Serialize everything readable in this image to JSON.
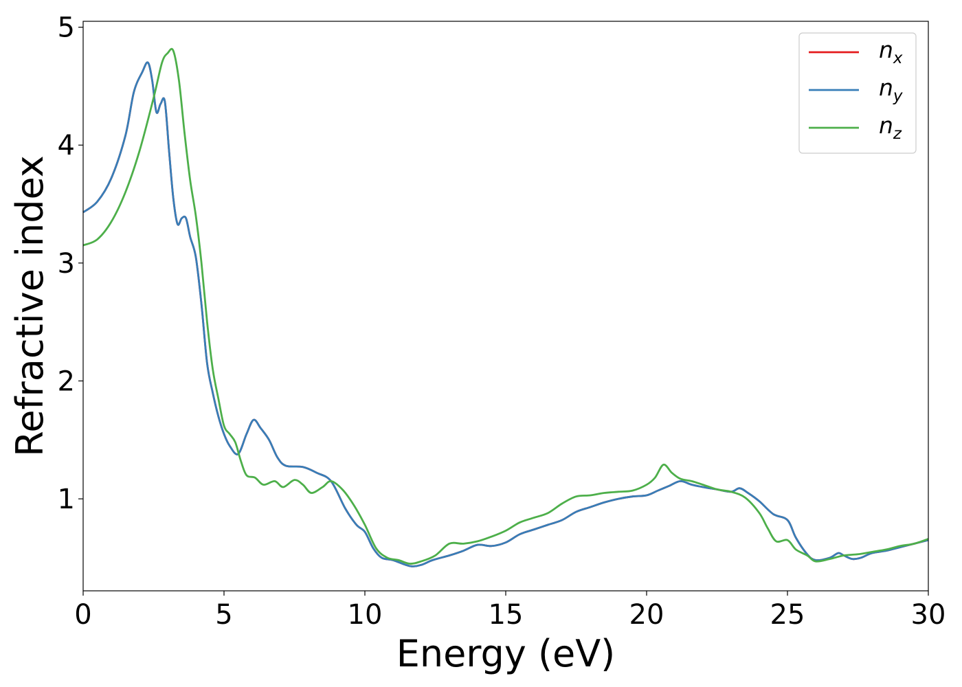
{
  "chart_data": {
    "type": "line",
    "xlabel": "Energy (eV)",
    "ylabel": "Refractive index",
    "xlim": [
      0,
      30
    ],
    "ylim": [
      0.22,
      5.05
    ],
    "xticks": [
      0,
      5,
      10,
      15,
      20,
      25,
      30
    ],
    "yticks": [
      1,
      2,
      3,
      4,
      5
    ],
    "xtick_labels": [
      "0",
      "5",
      "10",
      "15",
      "20",
      "25",
      "30"
    ],
    "ytick_labels": [
      "1",
      "2",
      "3",
      "4",
      "5"
    ],
    "grid": false,
    "legend_position": "top-right",
    "series": [
      {
        "name": "n_x",
        "label_base": "n",
        "label_sub": "x",
        "color": "#e41a1c",
        "x": [
          0,
          0.5,
          1.0,
          1.5,
          1.8,
          2.1,
          2.3,
          2.45,
          2.6,
          2.75,
          2.9,
          3.05,
          3.2,
          3.35,
          3.5,
          3.65,
          3.8,
          4.0,
          4.2,
          4.4,
          4.6,
          4.8,
          5.0,
          5.2,
          5.5,
          5.8,
          6.05,
          6.3,
          6.6,
          6.9,
          7.2,
          7.8,
          8.3,
          8.8,
          9.3,
          9.7,
          10.0,
          10.3,
          10.6,
          11.0,
          11.6,
          12.0,
          12.4,
          13.0,
          13.5,
          14.0,
          14.5,
          15.0,
          15.5,
          16.0,
          16.5,
          17.0,
          17.5,
          18.0,
          18.5,
          19.0,
          19.5,
          20.0,
          20.4,
          20.8,
          21.2,
          21.6,
          22.0,
          22.5,
          23.0,
          23.3,
          23.6,
          24.0,
          24.5,
          25.0,
          25.3,
          25.7,
          26.0,
          26.5,
          26.8,
          27.0,
          27.3,
          27.6,
          28.0,
          28.5,
          29.0,
          29.5,
          30.0
        ],
        "values": [
          3.43,
          3.52,
          3.72,
          4.08,
          4.45,
          4.62,
          4.7,
          4.55,
          4.28,
          4.35,
          4.37,
          3.95,
          3.55,
          3.33,
          3.38,
          3.38,
          3.22,
          3.05,
          2.65,
          2.15,
          1.9,
          1.7,
          1.55,
          1.45,
          1.38,
          1.55,
          1.67,
          1.6,
          1.5,
          1.35,
          1.28,
          1.27,
          1.22,
          1.15,
          0.92,
          0.78,
          0.72,
          0.58,
          0.5,
          0.48,
          0.43,
          0.44,
          0.48,
          0.52,
          0.56,
          0.61,
          0.6,
          0.63,
          0.7,
          0.74,
          0.78,
          0.82,
          0.89,
          0.93,
          0.97,
          1.0,
          1.02,
          1.03,
          1.07,
          1.11,
          1.15,
          1.12,
          1.1,
          1.08,
          1.06,
          1.09,
          1.05,
          0.98,
          0.87,
          0.82,
          0.67,
          0.53,
          0.48,
          0.5,
          0.54,
          0.52,
          0.49,
          0.5,
          0.54,
          0.56,
          0.59,
          0.62,
          0.65
        ]
      },
      {
        "name": "n_y",
        "label_base": "n",
        "label_sub": "y",
        "color": "#377eb8",
        "x": [
          0,
          0.5,
          1.0,
          1.5,
          1.8,
          2.1,
          2.3,
          2.45,
          2.6,
          2.75,
          2.9,
          3.05,
          3.2,
          3.35,
          3.5,
          3.65,
          3.8,
          4.0,
          4.2,
          4.4,
          4.6,
          4.8,
          5.0,
          5.2,
          5.5,
          5.8,
          6.05,
          6.3,
          6.6,
          6.9,
          7.2,
          7.8,
          8.3,
          8.8,
          9.3,
          9.7,
          10.0,
          10.3,
          10.6,
          11.0,
          11.6,
          12.0,
          12.4,
          13.0,
          13.5,
          14.0,
          14.5,
          15.0,
          15.5,
          16.0,
          16.5,
          17.0,
          17.5,
          18.0,
          18.5,
          19.0,
          19.5,
          20.0,
          20.4,
          20.8,
          21.2,
          21.6,
          22.0,
          22.5,
          23.0,
          23.3,
          23.6,
          24.0,
          24.5,
          25.0,
          25.3,
          25.7,
          26.0,
          26.5,
          26.8,
          27.0,
          27.3,
          27.6,
          28.0,
          28.5,
          29.0,
          29.5,
          30.0
        ],
        "values": [
          3.43,
          3.52,
          3.72,
          4.08,
          4.45,
          4.62,
          4.7,
          4.55,
          4.28,
          4.35,
          4.37,
          3.95,
          3.55,
          3.33,
          3.38,
          3.38,
          3.22,
          3.05,
          2.65,
          2.15,
          1.9,
          1.7,
          1.55,
          1.45,
          1.38,
          1.55,
          1.67,
          1.6,
          1.5,
          1.35,
          1.28,
          1.27,
          1.22,
          1.15,
          0.92,
          0.78,
          0.72,
          0.58,
          0.5,
          0.48,
          0.43,
          0.44,
          0.48,
          0.52,
          0.56,
          0.61,
          0.6,
          0.63,
          0.7,
          0.74,
          0.78,
          0.82,
          0.89,
          0.93,
          0.97,
          1.0,
          1.02,
          1.03,
          1.07,
          1.11,
          1.15,
          1.12,
          1.1,
          1.08,
          1.06,
          1.09,
          1.05,
          0.98,
          0.87,
          0.82,
          0.67,
          0.53,
          0.48,
          0.5,
          0.54,
          0.52,
          0.49,
          0.5,
          0.54,
          0.56,
          0.59,
          0.62,
          0.65
        ]
      },
      {
        "name": "n_z",
        "label_base": "n",
        "label_sub": "z",
        "color": "#4daf4a",
        "x": [
          0,
          0.5,
          1.0,
          1.5,
          2.0,
          2.5,
          2.8,
          3.0,
          3.2,
          3.4,
          3.6,
          3.8,
          4.0,
          4.2,
          4.4,
          4.6,
          4.8,
          5.0,
          5.2,
          5.4,
          5.6,
          5.8,
          6.1,
          6.4,
          6.8,
          7.1,
          7.5,
          7.8,
          8.1,
          8.5,
          8.8,
          9.2,
          9.6,
          10.0,
          10.4,
          10.8,
          11.2,
          11.6,
          12.0,
          12.5,
          13.0,
          13.5,
          14.0,
          14.5,
          15.0,
          15.5,
          16.0,
          16.5,
          17.0,
          17.5,
          18.0,
          18.5,
          19.0,
          19.5,
          20.0,
          20.3,
          20.6,
          20.9,
          21.2,
          21.6,
          22.0,
          22.5,
          23.0,
          23.5,
          24.0,
          24.3,
          24.6,
          25.0,
          25.3,
          25.7,
          26.0,
          26.5,
          27.0,
          27.5,
          28.0,
          28.5,
          29.0,
          29.5,
          30.0
        ],
        "values": [
          3.15,
          3.2,
          3.35,
          3.6,
          3.95,
          4.4,
          4.7,
          4.78,
          4.8,
          4.55,
          4.1,
          3.7,
          3.4,
          3.0,
          2.5,
          2.1,
          1.85,
          1.62,
          1.55,
          1.48,
          1.32,
          1.2,
          1.18,
          1.12,
          1.15,
          1.1,
          1.16,
          1.12,
          1.05,
          1.1,
          1.15,
          1.08,
          0.95,
          0.78,
          0.58,
          0.5,
          0.48,
          0.45,
          0.47,
          0.52,
          0.62,
          0.62,
          0.64,
          0.68,
          0.73,
          0.8,
          0.84,
          0.88,
          0.96,
          1.02,
          1.03,
          1.05,
          1.06,
          1.07,
          1.12,
          1.18,
          1.29,
          1.22,
          1.17,
          1.15,
          1.12,
          1.08,
          1.06,
          1.01,
          0.88,
          0.75,
          0.64,
          0.65,
          0.57,
          0.52,
          0.47,
          0.49,
          0.52,
          0.53,
          0.55,
          0.57,
          0.6,
          0.62,
          0.66
        ]
      }
    ]
  }
}
